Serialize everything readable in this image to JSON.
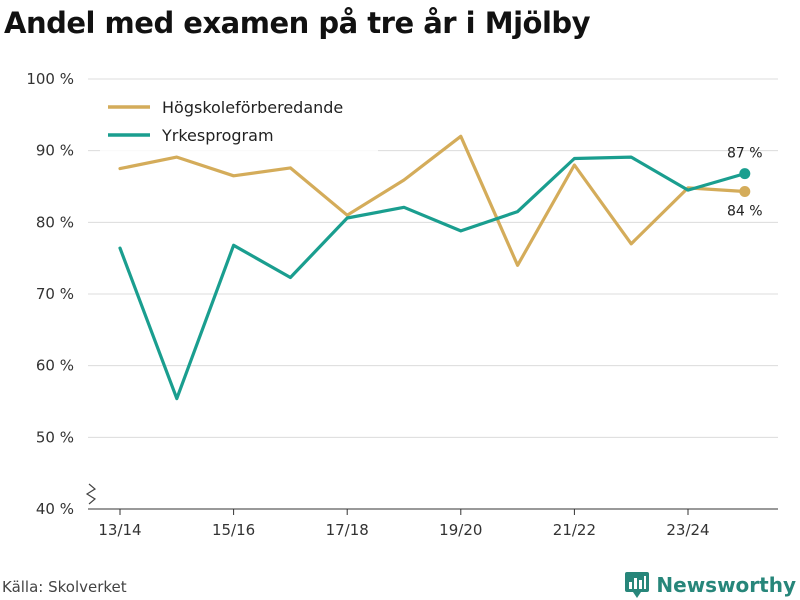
{
  "chart_data": {
    "type": "line",
    "title": "Andel med examen på tre år i Mjölby",
    "x": [
      "13/14",
      "14/15",
      "15/16",
      "16/17",
      "17/18",
      "18/19",
      "19/20",
      "20/21",
      "21/22",
      "22/23",
      "23/24",
      "24/25"
    ],
    "x_tick_labels": [
      "13/14",
      "15/16",
      "17/18",
      "19/20",
      "21/22",
      "23/24"
    ],
    "y_tick_labels": [
      "40 %",
      "50 %",
      "60 %",
      "70 %",
      "80 %",
      "90 %",
      "100 %"
    ],
    "ylim": [
      40,
      100
    ],
    "grid": true,
    "legend_position": "top-left",
    "series": [
      {
        "name": "Högskoleförberedande",
        "color": "#d4ac5a",
        "values": [
          87.5,
          89.1,
          86.5,
          87.6,
          81.0,
          85.9,
          92.0,
          74.0,
          88.0,
          77.0,
          84.8,
          84.3
        ],
        "end_label": "84 %"
      },
      {
        "name": "Yrkesprogram",
        "color": "#1a9e8f",
        "values": [
          76.4,
          55.4,
          76.8,
          72.3,
          80.6,
          82.1,
          78.8,
          81.5,
          88.9,
          89.1,
          84.5,
          86.8
        ],
        "end_label": "87 %"
      }
    ]
  },
  "source": "Källa: Skolverket",
  "brand": {
    "name": "Newsworthy",
    "color": "#27867a"
  }
}
